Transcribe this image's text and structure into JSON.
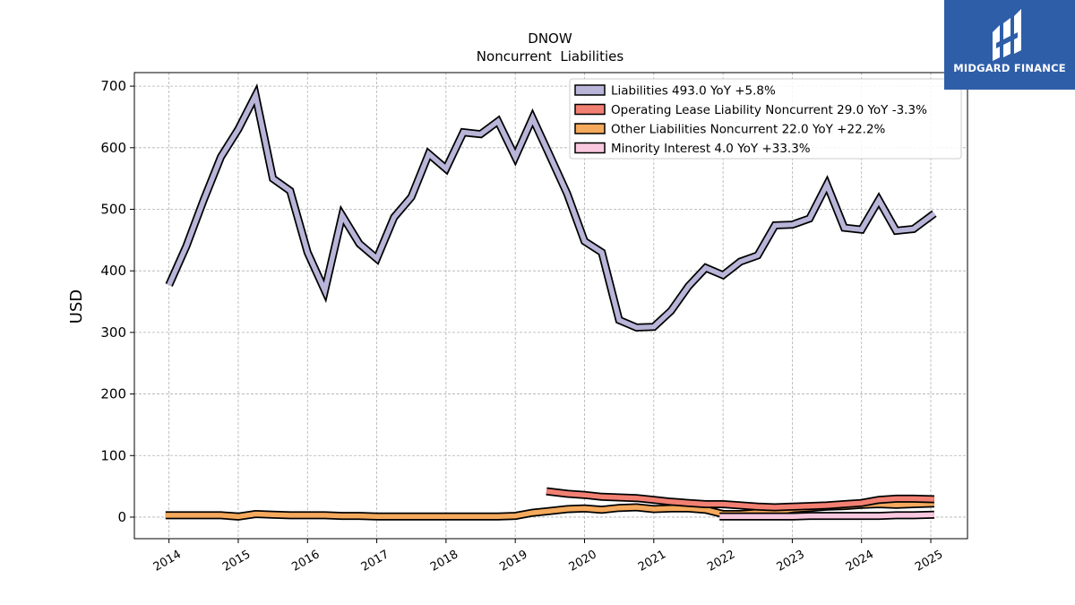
{
  "brand": {
    "name": "MIDGARD FINANCE",
    "icon": "midgard-logo-icon",
    "color": "#2f5ea9"
  },
  "chart_data": {
    "type": "line",
    "title": "DNOW",
    "subtitle": "Noncurrent  Liabilities",
    "ylabel": "USD",
    "xlabel": "",
    "ylim": [
      -35,
      722
    ],
    "xlim": [
      2013.5,
      2025.53
    ],
    "yticks": [
      0,
      100,
      200,
      300,
      400,
      500,
      600,
      700
    ],
    "xticks": [
      "2014",
      "2015",
      "2016",
      "2017",
      "2018",
      "2019",
      "2020",
      "2021",
      "2022",
      "2023",
      "2024",
      "2025"
    ],
    "grid": true,
    "legend_position": "top-right",
    "series": [
      {
        "name": "Liabilities  493.0 YoY +5.8%",
        "color": "#b8b5d9",
        "x": [
          2014.0,
          2014.25,
          2014.5,
          2014.75,
          2015.0,
          2015.25,
          2015.5,
          2015.75,
          2016.0,
          2016.25,
          2016.5,
          2016.75,
          2017.0,
          2017.25,
          2017.5,
          2017.75,
          2018.0,
          2018.25,
          2018.5,
          2018.75,
          2019.0,
          2019.25,
          2019.5,
          2019.75,
          2020.0,
          2020.25,
          2020.5,
          2020.75,
          2021.0,
          2021.25,
          2021.5,
          2021.75,
          2022.0,
          2022.25,
          2022.5,
          2022.75,
          2023.0,
          2023.25,
          2023.5,
          2023.75,
          2024.0,
          2024.25,
          2024.5,
          2024.75,
          2025.05
        ],
        "y": [
          377,
          440,
          515,
          585,
          630,
          685,
          550,
          530,
          430,
          368,
          490,
          444,
          420,
          487,
          520,
          590,
          566,
          625,
          622,
          643,
          585,
          648,
          587,
          525,
          448,
          430,
          320,
          308,
          309,
          335,
          375,
          405,
          393,
          415,
          425,
          474,
          475,
          485,
          540,
          470,
          467,
          515,
          465,
          468,
          493
        ]
      },
      {
        "name": "Operating Lease Liability Noncurrent  29.0 YoY -3.3%",
        "color": "#f28072",
        "x": [
          2019.45,
          2019.75,
          2020.0,
          2020.25,
          2020.5,
          2020.75,
          2021.0,
          2021.25,
          2021.5,
          2021.75,
          2022.0,
          2022.25,
          2022.5,
          2022.75,
          2023.0,
          2023.25,
          2023.5,
          2023.75,
          2024.0,
          2024.25,
          2024.5,
          2024.75,
          2025.05
        ],
        "y": [
          42,
          38,
          36,
          33,
          32,
          31,
          28,
          25,
          23,
          21,
          21,
          19,
          17,
          16,
          17,
          18,
          19,
          21,
          23,
          28,
          30,
          30,
          29
        ]
      },
      {
        "name": "Other Liabilities Noncurrent  22.0 YoY +22.2%",
        "color": "#f5a95c",
        "x": [
          2013.95,
          2014.25,
          2014.5,
          2014.75,
          2015.0,
          2015.25,
          2015.5,
          2015.75,
          2016.0,
          2016.25,
          2016.5,
          2016.75,
          2017.0,
          2017.25,
          2017.5,
          2017.75,
          2018.0,
          2018.25,
          2018.5,
          2018.75,
          2019.0,
          2019.25,
          2019.5,
          2019.75,
          2020.0,
          2020.25,
          2020.5,
          2020.75,
          2021.0,
          2021.25,
          2021.5,
          2021.75,
          2022.0,
          2022.25,
          2022.5,
          2022.75,
          2023.0,
          2023.25,
          2023.5,
          2023.75,
          2024.0,
          2024.25,
          2024.5,
          2024.75,
          2025.05
        ],
        "y": [
          3,
          3,
          3,
          3,
          1,
          5,
          4,
          3,
          3,
          3,
          2,
          2,
          1,
          1,
          1,
          1,
          1,
          1,
          1,
          1,
          2,
          7,
          10,
          13,
          14,
          12,
          15,
          16,
          13,
          14,
          14,
          12,
          5,
          5,
          7,
          8,
          13,
          15,
          17,
          18,
          20,
          21,
          20,
          21,
          22
        ]
      },
      {
        "name": "Minority Interest  4.0 YoY +33.3%",
        "color": "#f9c8df",
        "x": [
          2021.95,
          2022.25,
          2022.5,
          2022.75,
          2023.0,
          2023.25,
          2023.5,
          2023.75,
          2024.0,
          2024.25,
          2024.5,
          2024.75,
          2025.05
        ],
        "y": [
          1,
          1,
          1,
          1,
          1,
          2,
          2,
          2,
          2,
          2,
          3,
          3,
          4
        ]
      }
    ]
  }
}
